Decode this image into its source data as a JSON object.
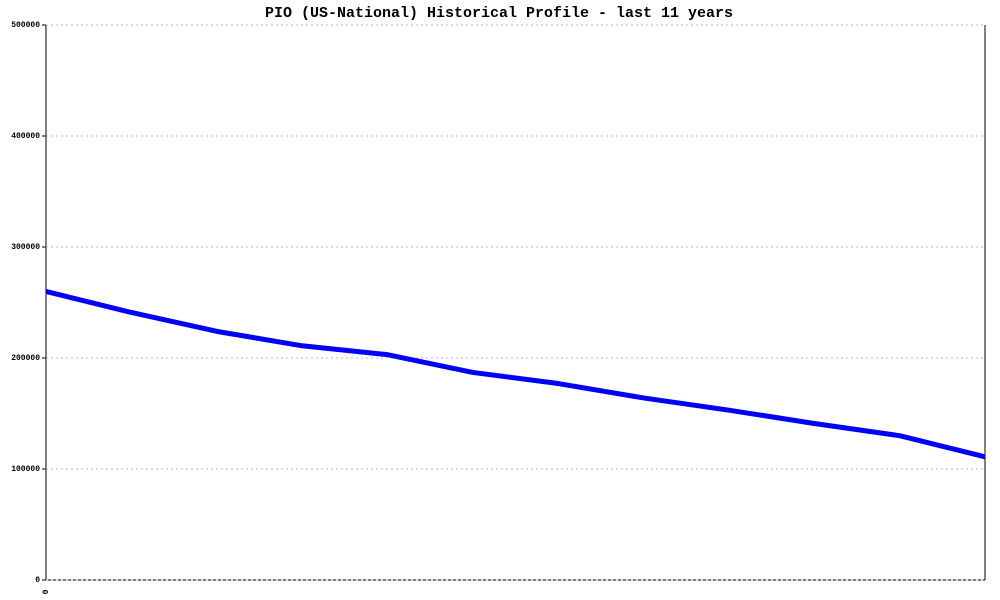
{
  "chart_data": {
    "type": "line",
    "title": "PIO (US-National) Historical Profile - last 11 years",
    "categories": [
      "0",
      null,
      null,
      null,
      null,
      null,
      null,
      null,
      null,
      null,
      null,
      null
    ],
    "values": [
      260000,
      241000,
      224000,
      211000,
      203000,
      187000,
      177000,
      164000,
      153000,
      141000,
      130000,
      111000
    ],
    "color": "#0000ff",
    "ylim": [
      0,
      500000
    ],
    "yticks": [
      0,
      100000,
      200000,
      300000,
      400000,
      500000
    ],
    "grid": true
  }
}
